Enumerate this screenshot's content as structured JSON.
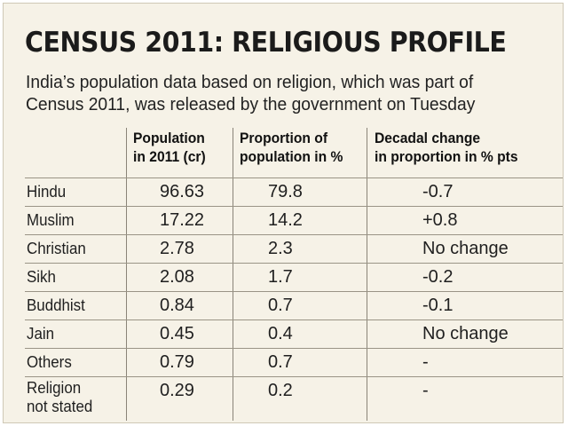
{
  "title": "CENSUS 2011: RELIGIOUS PROFILE",
  "subtitle_lines": [
    "India’s population data based on religion, which was part of",
    "Census 2011, was released by the government on Tuesday"
  ],
  "chart_data": {
    "type": "table",
    "title": "CENSUS 2011: RELIGIOUS PROFILE",
    "columns": [
      {
        "line1": "Population",
        "line2": "in 2011 (cr)"
      },
      {
        "line1": "Proportion of",
        "line2": "population in %"
      },
      {
        "line1": "Decadal change",
        "line2": "in proportion in % pts"
      }
    ],
    "rows": [
      {
        "label": [
          "Hindu"
        ],
        "population": "96.63",
        "proportion": "79.8",
        "change": "-0.7"
      },
      {
        "label": [
          "Muslim"
        ],
        "population": "17.22",
        "proportion": "14.2",
        "change": "+0.8"
      },
      {
        "label": [
          "Christian"
        ],
        "population": "2.78",
        "proportion": "2.3",
        "change": "No change"
      },
      {
        "label": [
          "Sikh"
        ],
        "population": "2.08",
        "proportion": "1.7",
        "change": "-0.2"
      },
      {
        "label": [
          "Buddhist"
        ],
        "population": "0.84",
        "proportion": "0.7",
        "change": "-0.1"
      },
      {
        "label": [
          "Jain"
        ],
        "population": "0.45",
        "proportion": "0.4",
        "change": "No change"
      },
      {
        "label": [
          "Others"
        ],
        "population": "0.79",
        "proportion": "0.7",
        "change": "-"
      },
      {
        "label": [
          "Religion",
          "not stated"
        ],
        "population": "0.29",
        "proportion": "0.2",
        "change": "-"
      }
    ]
  }
}
